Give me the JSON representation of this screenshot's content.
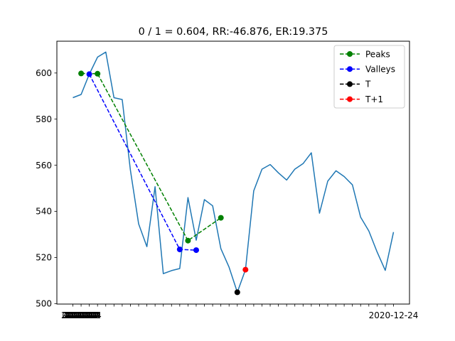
{
  "chart_data": {
    "type": "line",
    "title": "0 / 1 = 0.604, RR:-46.876, ER:19.375",
    "xlabel": "",
    "ylabel": "",
    "ylim": [
      499.8,
      613.8
    ],
    "yticks": [
      500,
      520,
      540,
      560,
      580,
      600
    ],
    "grid": false,
    "legend_position": "top-right",
    "x_tick_labels_note": "overlapping date labels, last visible: 2020-12-24",
    "x_last_label": "2020-12-24",
    "price": [
      589.3,
      590.7,
      599.5,
      606.9,
      609.1,
      589.3,
      588.5,
      557.9,
      534.6,
      524.7,
      550.7,
      513.0,
      514.3,
      515.2,
      546.0,
      527.5,
      545.1,
      542.4,
      523.8,
      515.8,
      504.9,
      514.7,
      548.9,
      558.3,
      560.3,
      556.7,
      553.6,
      558.3,
      560.7,
      565.4,
      539.2,
      553.1,
      557.6,
      555.1,
      551.5,
      537.5,
      531.5,
      522.4,
      514.4,
      531.0
    ],
    "series": [
      {
        "name": "Peaks",
        "color": "#008000",
        "dash": true,
        "points": [
          [
            1,
            599.8
          ],
          [
            3,
            599.7
          ],
          [
            14,
            527.3
          ],
          [
            18,
            537.2
          ]
        ]
      },
      {
        "name": "Valleys",
        "color": "#0000ff",
        "dash": true,
        "points": [
          [
            2,
            599.5
          ],
          [
            13,
            523.5
          ],
          [
            15,
            523.2
          ]
        ]
      },
      {
        "name": "T",
        "color": "#000000",
        "dash": true,
        "points": [
          [
            20,
            504.9
          ]
        ]
      },
      {
        "name": "T+1",
        "color": "#ff0000",
        "dash": true,
        "points": [
          [
            21,
            514.7
          ]
        ]
      }
    ],
    "price_color": "#1f77b4"
  }
}
